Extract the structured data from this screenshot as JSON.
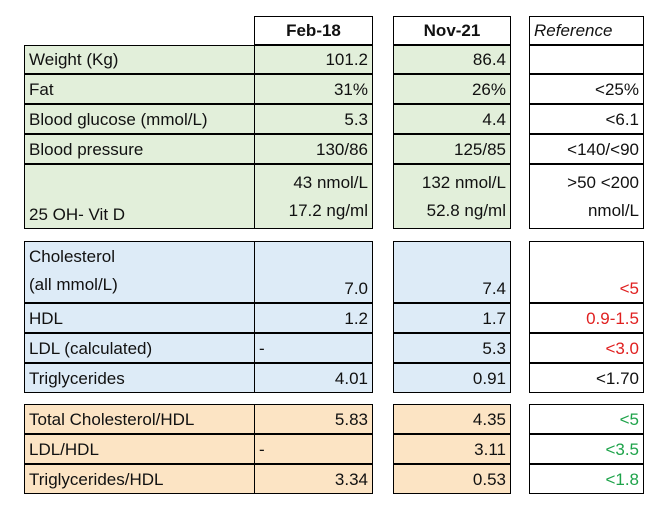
{
  "header": {
    "col_feb": "Feb-18",
    "col_nov": "Nov-21",
    "col_ref": "Reference"
  },
  "section1": [
    {
      "label": "Weight (Kg)",
      "feb": "101.2",
      "nov": "86.4",
      "ref": ""
    },
    {
      "label": "Fat",
      "feb": "31%",
      "nov": "26%",
      "ref": "<25%"
    },
    {
      "label": "Blood glucose (mmol/L)",
      "feb": "5.3",
      "nov": "4.4",
      "ref": "<6.1"
    },
    {
      "label": "Blood pressure",
      "feb": "130/86",
      "nov": "125/85",
      "ref": "<140/<90"
    }
  ],
  "vitd": {
    "label": "25 OH- Vit D",
    "feb_line1": "43 nmol/L",
    "feb_line2": "17.2 ng/ml",
    "nov_line1": "132 nmol/L",
    "nov_line2": "52.8 ng/ml",
    "ref_line1": ">50 <200",
    "ref_line2": "nmol/L"
  },
  "cholesterol": {
    "label_line1": "Cholesterol",
    "label_line2": "(all mmol/L)",
    "feb": "7.0",
    "nov": "7.4",
    "ref": "<5"
  },
  "section2": [
    {
      "label": "HDL",
      "feb_left": "",
      "feb": "1.2",
      "nov": "1.7",
      "ref": "0.9-1.5"
    },
    {
      "label": "LDL (calculated)",
      "feb_left": "-",
      "feb": "",
      "nov": "5.3",
      "ref": "<3.0"
    },
    {
      "label": "Triglycerides",
      "feb_left": "",
      "feb": "4.01",
      "nov": "0.91",
      "ref": "<1.70"
    }
  ],
  "section3": [
    {
      "label": "Total Cholesterol/HDL",
      "feb_left": "",
      "feb": "5.83",
      "nov": "4.35",
      "ref": "<5"
    },
    {
      "label": "LDL/HDL",
      "feb_left": "-",
      "feb": "",
      "nov": "3.11",
      "ref": "<3.5"
    },
    {
      "label": "Triglycerides/HDL",
      "feb_left": "",
      "feb": "3.34",
      "nov": "0.53",
      "ref": "<1.8"
    }
  ],
  "colors": {
    "green_fill": "#e2efda",
    "blue_fill": "#ddebf7",
    "orange_fill": "#fce4c4",
    "red_text": "#e02020",
    "green_text": "#1ea34a"
  }
}
